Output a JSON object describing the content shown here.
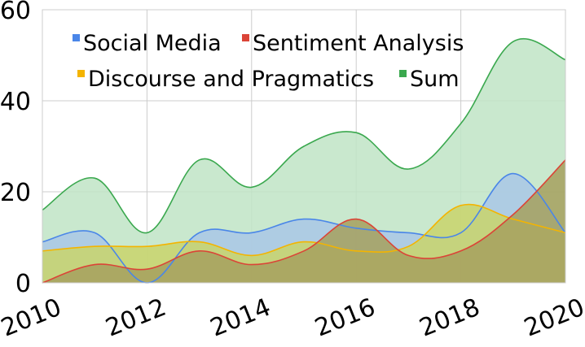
{
  "chart_data": {
    "type": "area",
    "x": [
      2010,
      2011,
      2012,
      2013,
      2014,
      2015,
      2016,
      2017,
      2018,
      2019,
      2020
    ],
    "xlim": [
      2010,
      2020
    ],
    "ylim": [
      0,
      60
    ],
    "x_ticks": [
      "2010",
      "2012",
      "2014",
      "2016",
      "2018",
      "2020"
    ],
    "y_ticks": [
      "0",
      "20",
      "40",
      "60"
    ],
    "grid": true,
    "legend_position": "top",
    "series": [
      {
        "name": "Sum",
        "color": "#3aa84e",
        "fill": "#bfe4c5",
        "values": [
          16,
          23,
          11,
          27,
          21,
          30,
          33,
          25,
          35,
          53,
          49
        ]
      },
      {
        "name": "Social Media",
        "color": "#4a86e8",
        "fill": "#a9c7e6",
        "values": [
          9,
          11,
          0,
          11,
          11,
          14,
          12,
          11,
          11,
          24,
          11
        ]
      },
      {
        "name": "Discourse and Pragmatics",
        "color": "#f4b400",
        "fill": "#c9d36b",
        "values": [
          7,
          8,
          8,
          9,
          6,
          9,
          7,
          8,
          17,
          14,
          11
        ]
      },
      {
        "name": "Sentiment Analysis",
        "color": "#db4437",
        "fill": "#a6a05e",
        "values": [
          0,
          4,
          3,
          7,
          4,
          7,
          14,
          6,
          7,
          15,
          27
        ]
      }
    ],
    "legend_rows": [
      [
        "Social Media",
        "Sentiment Analysis"
      ],
      [
        "Discourse and Pragmatics",
        "Sum"
      ]
    ]
  }
}
